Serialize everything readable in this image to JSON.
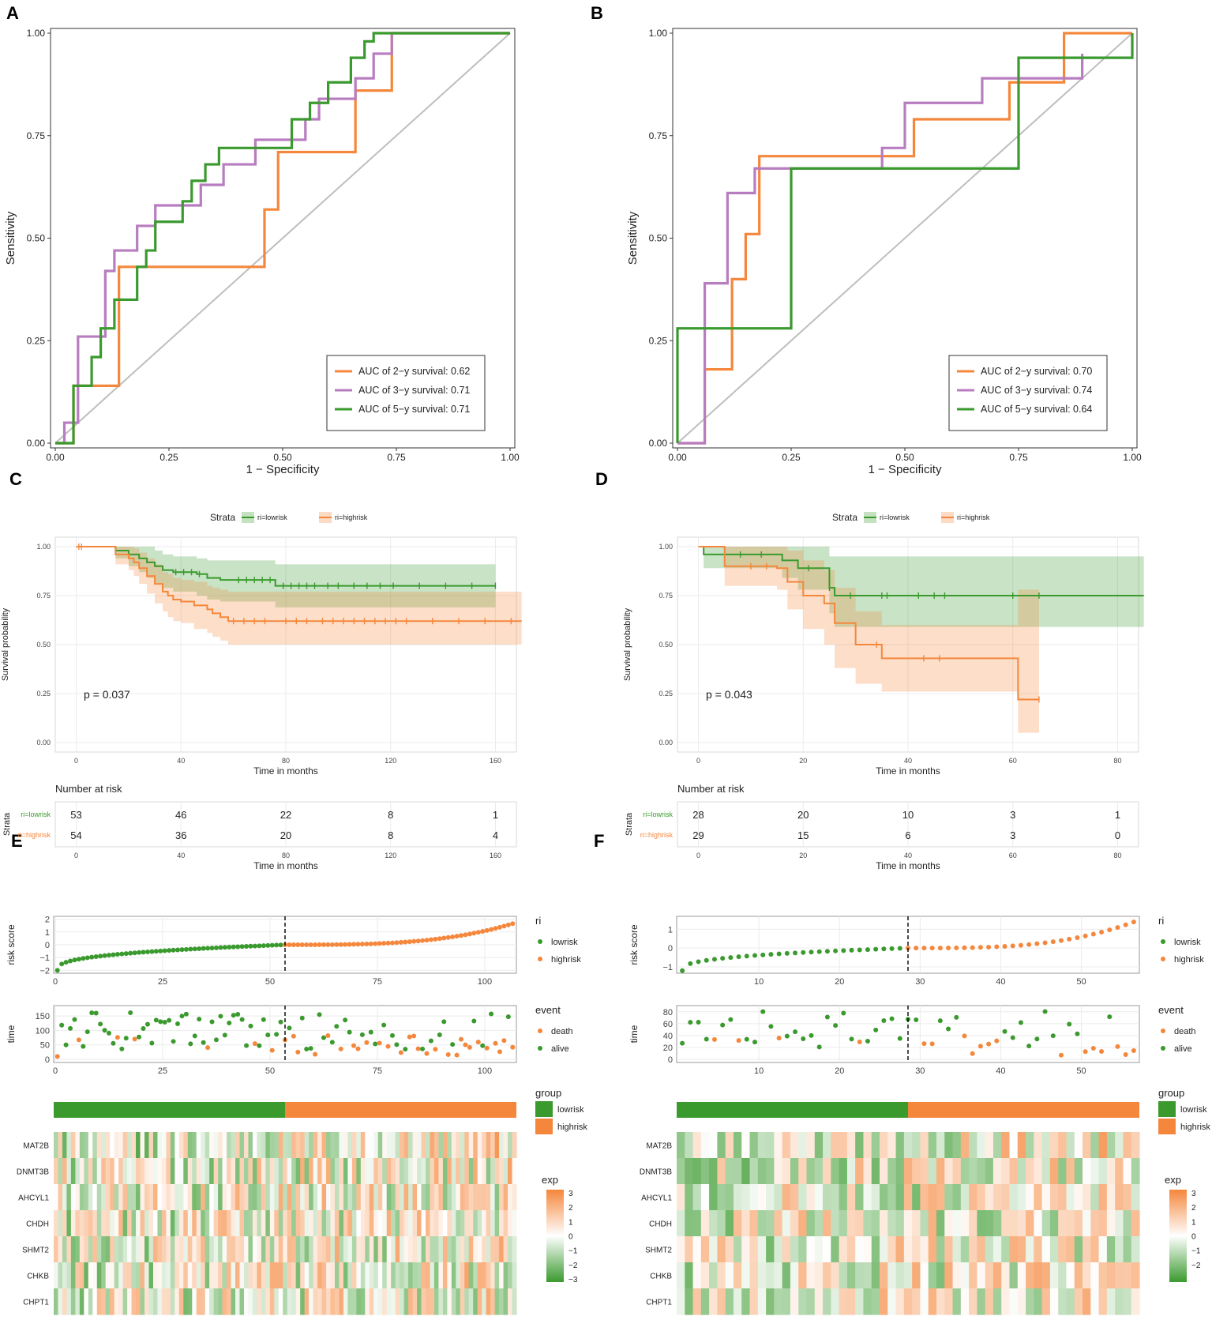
{
  "figure": {
    "panel_labels": [
      "A",
      "B",
      "C",
      "D",
      "E",
      "F"
    ],
    "colors": {
      "orange": "#F5873C",
      "purple": "#B87CC0",
      "green": "#3A9A2E",
      "diag": "#BEBEBE",
      "frame": "#333333",
      "grid": "#EBEBEB"
    }
  },
  "chart_data": [
    {
      "panel": "A",
      "type": "line",
      "xlabel": "1 − Specificity",
      "ylabel": "Sensitivity",
      "xlim": [
        0,
        1
      ],
      "ylim": [
        0,
        1
      ],
      "xticks": [
        "0.00",
        "0.25",
        "0.50",
        "0.75",
        "1.00"
      ],
      "yticks": [
        "0.00",
        "0.25",
        "0.50",
        "0.75",
        "1.00"
      ],
      "legend_position": "bottom-right",
      "series": [
        {
          "name": "AUC of 2−y survival: 0.62",
          "color": "#F5873C",
          "x": [
            0,
            0.04,
            0.04,
            0.14,
            0.14,
            0.46,
            0.46,
            0.49,
            0.49,
            0.66,
            0.66,
            0.74,
            0.74,
            1.0
          ],
          "y": [
            0,
            0,
            0.14,
            0.14,
            0.43,
            0.43,
            0.57,
            0.57,
            0.71,
            0.71,
            0.86,
            0.86,
            1.0,
            1.0
          ]
        },
        {
          "name": "AUC of 3−y survival: 0.71",
          "color": "#B87CC0",
          "x": [
            0,
            0.02,
            0.02,
            0.05,
            0.05,
            0.11,
            0.11,
            0.13,
            0.13,
            0.18,
            0.18,
            0.22,
            0.22,
            0.32,
            0.32,
            0.37,
            0.37,
            0.44,
            0.44,
            0.55,
            0.55,
            0.58,
            0.58,
            0.66,
            0.66,
            0.7,
            0.7,
            0.74,
            0.74,
            1.0
          ],
          "y": [
            0,
            0,
            0.05,
            0.05,
            0.26,
            0.26,
            0.42,
            0.42,
            0.47,
            0.47,
            0.53,
            0.53,
            0.58,
            0.58,
            0.63,
            0.63,
            0.68,
            0.68,
            0.74,
            0.74,
            0.79,
            0.79,
            0.84,
            0.84,
            0.89,
            0.89,
            0.95,
            0.95,
            1.0,
            1.0
          ]
        },
        {
          "name": "AUC of 5−y survival: 0.71",
          "color": "#3A9A2E",
          "x": [
            0,
            0.04,
            0.04,
            0.08,
            0.08,
            0.1,
            0.1,
            0.13,
            0.13,
            0.18,
            0.18,
            0.2,
            0.2,
            0.22,
            0.22,
            0.28,
            0.28,
            0.3,
            0.3,
            0.33,
            0.33,
            0.36,
            0.36,
            0.38,
            0.38,
            0.52,
            0.52,
            0.56,
            0.56,
            0.6,
            0.6,
            0.65,
            0.65,
            0.68,
            0.68,
            0.7,
            0.7,
            1.0
          ],
          "y": [
            0,
            0,
            0.14,
            0.14,
            0.21,
            0.21,
            0.28,
            0.28,
            0.35,
            0.35,
            0.43,
            0.43,
            0.47,
            0.47,
            0.54,
            0.54,
            0.59,
            0.59,
            0.64,
            0.64,
            0.68,
            0.68,
            0.72,
            0.72,
            0.72,
            0.72,
            0.79,
            0.79,
            0.83,
            0.83,
            0.88,
            0.88,
            0.94,
            0.94,
            0.98,
            0.98,
            1.0,
            1.0
          ]
        }
      ]
    },
    {
      "panel": "B",
      "type": "line",
      "xlabel": "1 − Specificity",
      "ylabel": "Sensitivity",
      "xlim": [
        0,
        1
      ],
      "ylim": [
        0,
        1
      ],
      "xticks": [
        "0.00",
        "0.25",
        "0.50",
        "0.75",
        "1.00"
      ],
      "yticks": [
        "0.00",
        "0.25",
        "0.50",
        "0.75",
        "1.00"
      ],
      "legend_position": "bottom-right",
      "series": [
        {
          "name": "AUC of 2−y survival: 0.70",
          "color": "#F5873C",
          "x": [
            0,
            0.06,
            0.06,
            0.12,
            0.12,
            0.15,
            0.15,
            0.18,
            0.18,
            0.52,
            0.52,
            0.73,
            0.73,
            0.85,
            0.85,
            1.0
          ],
          "y": [
            0,
            0,
            0.18,
            0.18,
            0.4,
            0.4,
            0.51,
            0.51,
            0.7,
            0.7,
            0.79,
            0.79,
            0.88,
            0.88,
            1.0,
            1.0
          ]
        },
        {
          "name": "AUC of 3−y survival: 0.74",
          "color": "#B87CC0",
          "x": [
            0,
            0.06,
            0.06,
            0.11,
            0.11,
            0.17,
            0.17,
            0.45,
            0.45,
            0.5,
            0.5,
            0.67,
            0.67,
            0.89,
            0.89
          ],
          "y": [
            0,
            0,
            0.39,
            0.39,
            0.61,
            0.61,
            0.67,
            0.67,
            0.72,
            0.72,
            0.83,
            0.83,
            0.89,
            0.89,
            0.95
          ]
        },
        {
          "name": "AUC of 5−y survival: 0.64",
          "color": "#3A9A2E",
          "x": [
            0,
            0,
            0.25,
            0.25,
            0.75,
            0.75,
            1.0,
            1.0
          ],
          "y": [
            0,
            0.28,
            0.28,
            0.67,
            0.67,
            0.94,
            0.94,
            1.0
          ]
        }
      ]
    },
    {
      "panel": "C",
      "type": "line",
      "subtype": "kaplan-meier",
      "legend_title": "Strata",
      "legend_items": [
        "ri=lowrisk",
        "ri=highrisk"
      ],
      "xlabel": "Time in months",
      "ylabel": "Survival probability",
      "xlim": [
        -8,
        168
      ],
      "ylim": [
        0,
        1
      ],
      "xticks": [
        "0",
        "40",
        "80",
        "120",
        "160"
      ],
      "yticks": [
        "0.00",
        "0.25",
        "0.50",
        "0.75",
        "1.00"
      ],
      "pvalue": "p = 0.037",
      "series": [
        {
          "name": "ri=lowrisk",
          "color": "#3A9A2E",
          "x": [
            0,
            5,
            15,
            20,
            21,
            24,
            27,
            30,
            33,
            37,
            40,
            46,
            50,
            55,
            60,
            75,
            76,
            160
          ],
          "y": [
            1.0,
            1.0,
            0.98,
            0.96,
            0.96,
            0.94,
            0.92,
            0.9,
            0.88,
            0.87,
            0.87,
            0.86,
            0.84,
            0.83,
            0.83,
            0.83,
            0.8,
            0.8
          ],
          "ci_upper": [
            1.0,
            1.0,
            1.0,
            1.0,
            1.0,
            1.0,
            1.0,
            0.98,
            0.96,
            0.95,
            0.95,
            0.94,
            0.93,
            0.93,
            0.93,
            0.93,
            0.91,
            0.91
          ],
          "ci_lower": [
            1.0,
            1.0,
            0.94,
            0.9,
            0.9,
            0.87,
            0.84,
            0.81,
            0.79,
            0.77,
            0.77,
            0.75,
            0.73,
            0.72,
            0.72,
            0.72,
            0.69,
            0.69
          ],
          "censor_x": [
            38,
            41,
            44,
            47,
            62,
            65,
            68,
            71,
            74,
            79,
            82,
            85,
            88,
            91,
            96,
            100,
            106,
            111,
            116,
            121,
            131,
            141,
            151,
            160
          ]
        },
        {
          "name": "ri=highrisk",
          "color": "#F5873C",
          "x": [
            0,
            5,
            15,
            20,
            22,
            24,
            27,
            30,
            33,
            35,
            37,
            40,
            45,
            50,
            52,
            55,
            58,
            170
          ],
          "y": [
            1.0,
            1.0,
            0.96,
            0.94,
            0.92,
            0.89,
            0.85,
            0.81,
            0.77,
            0.75,
            0.73,
            0.72,
            0.7,
            0.68,
            0.66,
            0.64,
            0.62,
            0.62
          ],
          "ci_upper": [
            1.0,
            1.0,
            1.0,
            1.0,
            0.99,
            0.97,
            0.94,
            0.91,
            0.87,
            0.86,
            0.84,
            0.83,
            0.82,
            0.8,
            0.79,
            0.78,
            0.77,
            0.77
          ],
          "ci_lower": [
            1.0,
            1.0,
            0.91,
            0.88,
            0.85,
            0.81,
            0.76,
            0.71,
            0.67,
            0.64,
            0.62,
            0.61,
            0.58,
            0.56,
            0.54,
            0.52,
            0.5,
            0.5
          ],
          "censor_x": [
            1,
            2,
            60,
            64,
            68,
            72,
            80,
            84,
            88,
            94,
            98,
            102,
            106,
            110,
            114,
            118,
            122,
            126,
            136,
            146,
            156,
            166
          ]
        }
      ],
      "risk_table": {
        "title": "Number at risk",
        "ylabel": "Strata",
        "xlabel": "Time in months",
        "rows": [
          {
            "label": "ri=lowrisk",
            "color": "#3A9A2E",
            "values": [
              "53",
              "46",
              "22",
              "8",
              "1"
            ]
          },
          {
            "label": "ri=highrisk",
            "color": "#F5873C",
            "values": [
              "54",
              "36",
              "20",
              "8",
              "4"
            ]
          }
        ],
        "times": [
          0,
          40,
          80,
          120,
          160
        ],
        "tick_labels": [
          "0",
          "40",
          "80",
          "120",
          "160"
        ]
      }
    },
    {
      "panel": "D",
      "type": "line",
      "subtype": "kaplan-meier",
      "legend_title": "Strata",
      "legend_items": [
        "ri=lowrisk",
        "ri=highrisk"
      ],
      "xlabel": "Time in months",
      "ylabel": "Survival probability",
      "xlim": [
        -4,
        84
      ],
      "ylim": [
        0,
        1
      ],
      "xticks": [
        "0",
        "20",
        "40",
        "60",
        "80"
      ],
      "yticks": [
        "0.00",
        "0.25",
        "0.50",
        "0.75",
        "1.00"
      ],
      "pvalue": "p = 0.043",
      "series": [
        {
          "name": "ri=lowrisk",
          "color": "#3A9A2E",
          "x": [
            0,
            1,
            15,
            16,
            19,
            25,
            26,
            85
          ],
          "y": [
            1.0,
            0.96,
            0.96,
            0.93,
            0.89,
            0.79,
            0.75,
            0.75
          ],
          "ci_upper": [
            1.0,
            1.0,
            1.0,
            1.0,
            1.0,
            0.95,
            0.95,
            0.95
          ],
          "ci_lower": [
            1.0,
            0.89,
            0.89,
            0.84,
            0.78,
            0.66,
            0.59,
            0.59
          ],
          "censor_x": [
            8,
            12,
            21,
            25,
            29,
            35,
            36,
            42,
            45,
            47,
            60,
            65
          ]
        },
        {
          "name": "ri=highrisk",
          "color": "#F5873C",
          "x": [
            0,
            5,
            15,
            17,
            20,
            24,
            26,
            30,
            35,
            61,
            65
          ],
          "y": [
            1.0,
            0.9,
            0.89,
            0.82,
            0.75,
            0.71,
            0.61,
            0.5,
            0.43,
            0.22,
            0.22
          ],
          "ci_upper": [
            1.0,
            1.0,
            1.0,
            0.98,
            0.93,
            0.88,
            0.79,
            0.67,
            0.6,
            0.78,
            0.78
          ],
          "ci_lower": [
            1.0,
            0.8,
            0.78,
            0.68,
            0.58,
            0.5,
            0.38,
            0.3,
            0.26,
            0.05,
            0.05
          ],
          "censor_x": [
            10,
            13,
            34,
            43,
            46,
            65
          ]
        }
      ],
      "risk_table": {
        "title": "Number at risk",
        "ylabel": "Strata",
        "xlabel": "Time in months",
        "rows": [
          {
            "label": "ri=lowrisk",
            "color": "#3A9A2E",
            "values": [
              "28",
              "20",
              "10",
              "3",
              "1"
            ]
          },
          {
            "label": "ri=highrisk",
            "color": "#F5873C",
            "values": [
              "29",
              "15",
              "6",
              "3",
              "0"
            ]
          }
        ],
        "times": [
          0,
          20,
          40,
          60,
          80
        ],
        "tick_labels": [
          "0",
          "20",
          "40",
          "60",
          "80"
        ]
      }
    },
    {
      "panel": "E",
      "type": "scatter",
      "subtype": "risk-score-plot",
      "risk_score": {
        "ylabel": "risk score",
        "n": 107,
        "cutoff": 53.5,
        "xticks": [
          "0",
          "25",
          "50",
          "75",
          "100"
        ],
        "xtick_values": [
          0,
          25,
          50,
          75,
          100
        ],
        "yticks": [
          "−2",
          "−1",
          "0",
          "1",
          "2"
        ],
        "ylim": [
          -2.1,
          2.1
        ],
        "legend_title": "ri",
        "legend_items": [
          "lowrisk",
          "highrisk"
        ],
        "y_start": -2.0,
        "y_cut": 0.0,
        "y_end": 1.75
      },
      "survival_time": {
        "ylabel": "time",
        "ylim": [
          0,
          175
        ],
        "yticks": [
          "0",
          "50",
          "100",
          "150"
        ],
        "legend_title": "event",
        "legend_items": [
          "death",
          "alive"
        ],
        "death_fraction": 0.35
      },
      "heatmap": {
        "group_title": "group",
        "group_items": [
          "lowrisk",
          "highrisk"
        ],
        "exp_title": "exp",
        "exp_ticks": [
          "3",
          "2",
          "1",
          "0",
          "−1",
          "−2",
          "−3"
        ],
        "genes": [
          "MAT2B",
          "DNMT3B",
          "AHCYL1",
          "CHDH",
          "SHMT2",
          "CHKB",
          "CHPT1"
        ],
        "columns": 107
      }
    },
    {
      "panel": "F",
      "type": "scatter",
      "subtype": "risk-score-plot",
      "risk_score": {
        "ylabel": "risk score",
        "n": 57,
        "cutoff": 28.5,
        "xticks": [
          "10",
          "20",
          "30",
          "40",
          "50"
        ],
        "xtick_values": [
          10,
          20,
          30,
          40,
          50
        ],
        "yticks": [
          "−1",
          "0",
          "1"
        ],
        "ylim": [
          -1.25,
          1.6
        ],
        "legend_title": "ri",
        "legend_items": [
          "lowrisk",
          "highrisk"
        ],
        "y_start": -1.2,
        "y_cut": 0.0,
        "y_end": 1.55
      },
      "survival_time": {
        "ylabel": "time",
        "ylim": [
          0,
          85
        ],
        "yticks": [
          "0",
          "20",
          "40",
          "60",
          "80"
        ],
        "legend_title": "event",
        "legend_items": [
          "death",
          "alive"
        ],
        "death_fraction": 0.35
      },
      "heatmap": {
        "group_title": "group",
        "group_items": [
          "lowrisk",
          "highrisk"
        ],
        "exp_title": "exp",
        "exp_ticks": [
          "3",
          "2",
          "1",
          "0",
          "−1",
          "−2"
        ],
        "genes": [
          "MAT2B",
          "DNMT3B",
          "AHCYL1",
          "CHDH",
          "SHMT2",
          "CHKB",
          "CHPT1"
        ],
        "columns": 57
      }
    }
  ]
}
